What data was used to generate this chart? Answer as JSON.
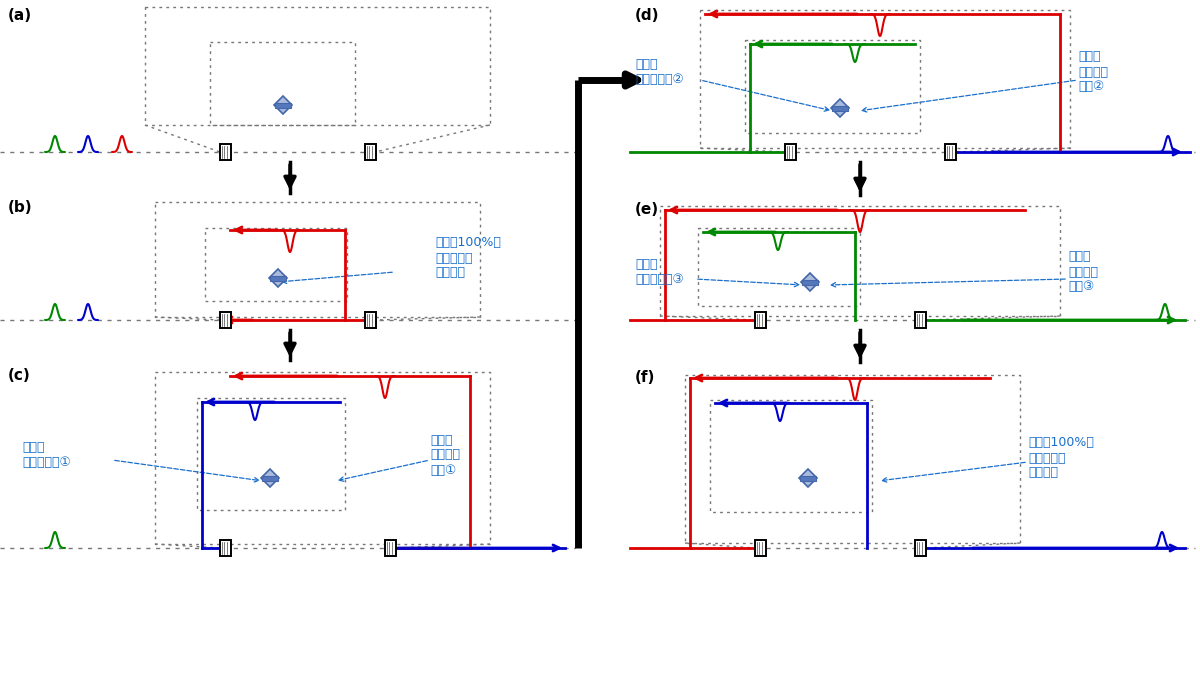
{
  "bg_color": "#ffffff",
  "label_color": "#1a6fcc",
  "label_fontsize": 9,
  "panel_label_fontsize": 11,
  "annotations": {
    "b": "透過率100%で\n光パルスを\n取り込む",
    "c_left": "適切な\n位相シフト①",
    "c_right": "適切な\n透過率で\n干渉①",
    "d_left": "適切な\n位相シフト②",
    "d_right": "適切な\n透過率で\n干渉②",
    "e_left": "適切な\n位相シフト③",
    "e_right": "適切な\n透過率で\n干渉③",
    "f": "透過率100%で\n光パルスを\n取り出す"
  },
  "colors": {
    "red": "#dd0000",
    "green": "#008800",
    "blue": "#0000cc",
    "dot": "#777777",
    "lc": "#1a6fcc",
    "bs_fill": "#aabbdd",
    "bs_edge": "#4466aa",
    "bs_bar": "#5577bb"
  }
}
